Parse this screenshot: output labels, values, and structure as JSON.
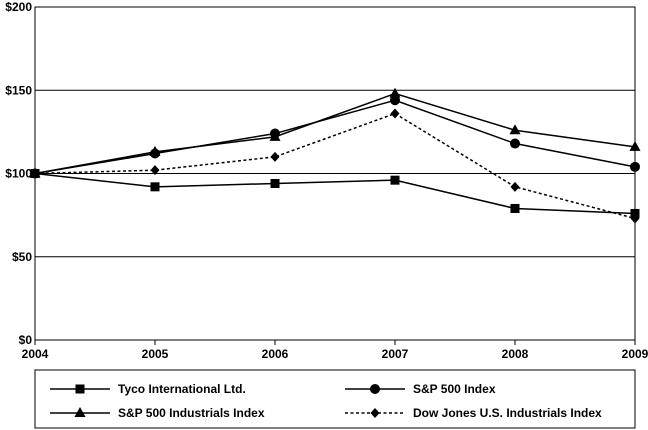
{
  "chart_data": {
    "type": "line",
    "x": [
      "2004",
      "2005",
      "2006",
      "2007",
      "2008",
      "2009"
    ],
    "ylim": [
      0,
      200
    ],
    "y_ticks": [
      0,
      50,
      100,
      150,
      200
    ],
    "y_tick_labels": [
      "$0",
      "$50",
      "$100",
      "$150",
      "$200"
    ],
    "grid": "horizontal",
    "legend_position": "bottom",
    "series": [
      {
        "name": "Tyco International Ltd.",
        "marker": "square",
        "dash": "solid",
        "values": [
          100,
          92,
          94,
          96,
          79,
          76
        ]
      },
      {
        "name": "S&P 500 Index",
        "marker": "circle",
        "dash": "solid",
        "values": [
          100,
          112,
          124,
          144,
          118,
          104
        ]
      },
      {
        "name": "S&P 500 Industrials Index",
        "marker": "triangle",
        "dash": "solid",
        "values": [
          100,
          113,
          122,
          148,
          126,
          116
        ]
      },
      {
        "name": "Dow Jones U.S. Industrials Index",
        "marker": "diamond",
        "dash": "dotted",
        "values": [
          100,
          102,
          110,
          136,
          92,
          73
        ]
      }
    ]
  }
}
